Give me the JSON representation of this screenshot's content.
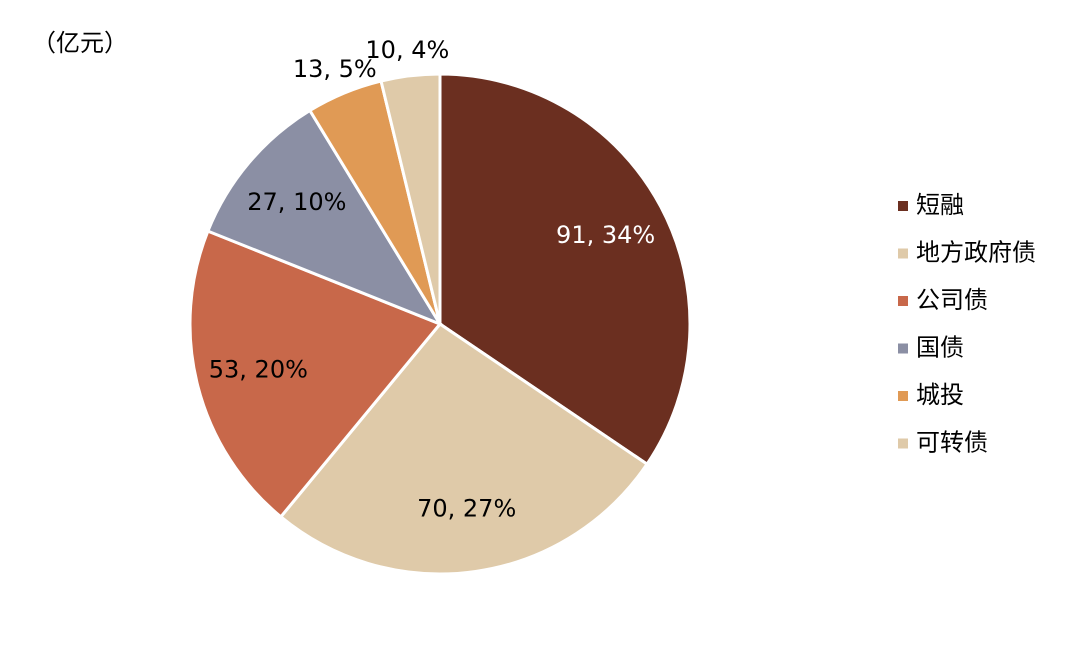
{
  "chart_data": {
    "type": "pie",
    "title": "（亿元）",
    "categories": [
      "短融",
      "地方政府债",
      "公司债",
      "国债",
      "城投",
      "可转债"
    ],
    "values": [
      91,
      70,
      53,
      27,
      13,
      10
    ],
    "value_labels": [
      "91, 34%",
      "70, 27%",
      "53, 20%",
      "27, 10%",
      "13, 5%",
      "10, 4%"
    ],
    "colors": [
      "#6b2f20",
      "#dfcaa9",
      "#c8684a",
      "#8b8fa4",
      "#e09a55",
      "#dfcaa9"
    ],
    "legend": "right"
  }
}
